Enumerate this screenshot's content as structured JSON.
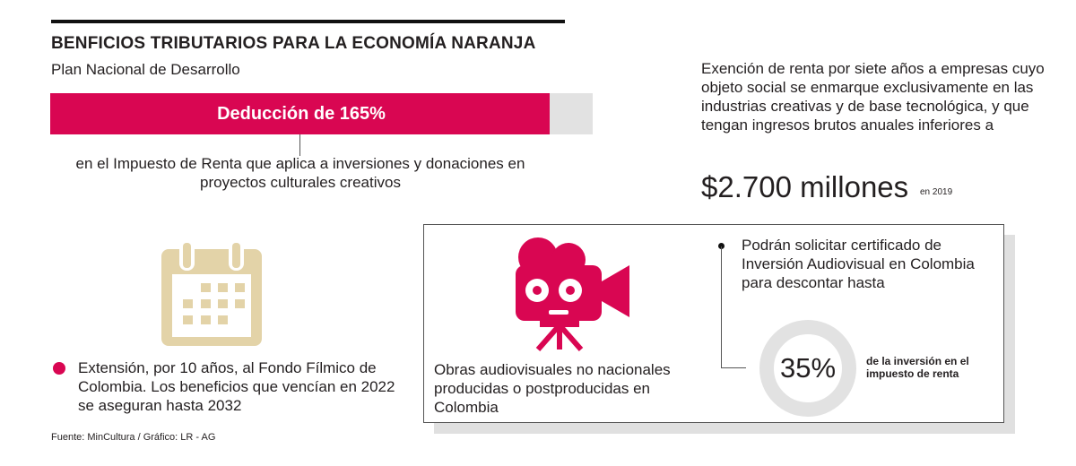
{
  "header": {
    "title": "BENFICIOS TRIBUTARIOS PARA LA ECONOMÍA NARANJA",
    "subtitle": "Plan Nacional de Desarrollo"
  },
  "deduction": {
    "label": "Deducción de 165%",
    "fill_fraction": 0.92,
    "description": "en el Impuesto de Renta que aplica a inversiones y donaciones en proyectos culturales creativos"
  },
  "exemption": {
    "description": "Exención de renta por siete años a empresas cuyo objeto social se enmarque exclusivamente en las industrias creativas y de base tecnológica, y que tengan ingresos brutos anuales inferiores a",
    "amount": "$2.700 millones",
    "amount_note": "en 2019"
  },
  "film_fund": {
    "icon": "calendar-icon",
    "text": "Extensión, por 10 años, al Fondo Fílmico de Colombia. Los beneficios que vencían en 2022 se aseguran hasta 2032"
  },
  "audiovisual": {
    "icon": "movie-camera-icon",
    "works_text": "Obras audiovisuales no nacionales producidas o postproducidas en Colombia",
    "certificate_text": "Podrán solicitar certificado de Inversión Audiovisual en Colombia para descontar hasta",
    "percent_label": "35%",
    "percent_value": 35,
    "percent_note": "de la inversión en el impuesto de renta"
  },
  "source": "Fuente: MinCultura / Gráfico: LR - AG",
  "colors": {
    "accent": "#d90652",
    "track": "#e2e2e2",
    "calendar": "#e3d3a8",
    "text": "#231f20"
  }
}
